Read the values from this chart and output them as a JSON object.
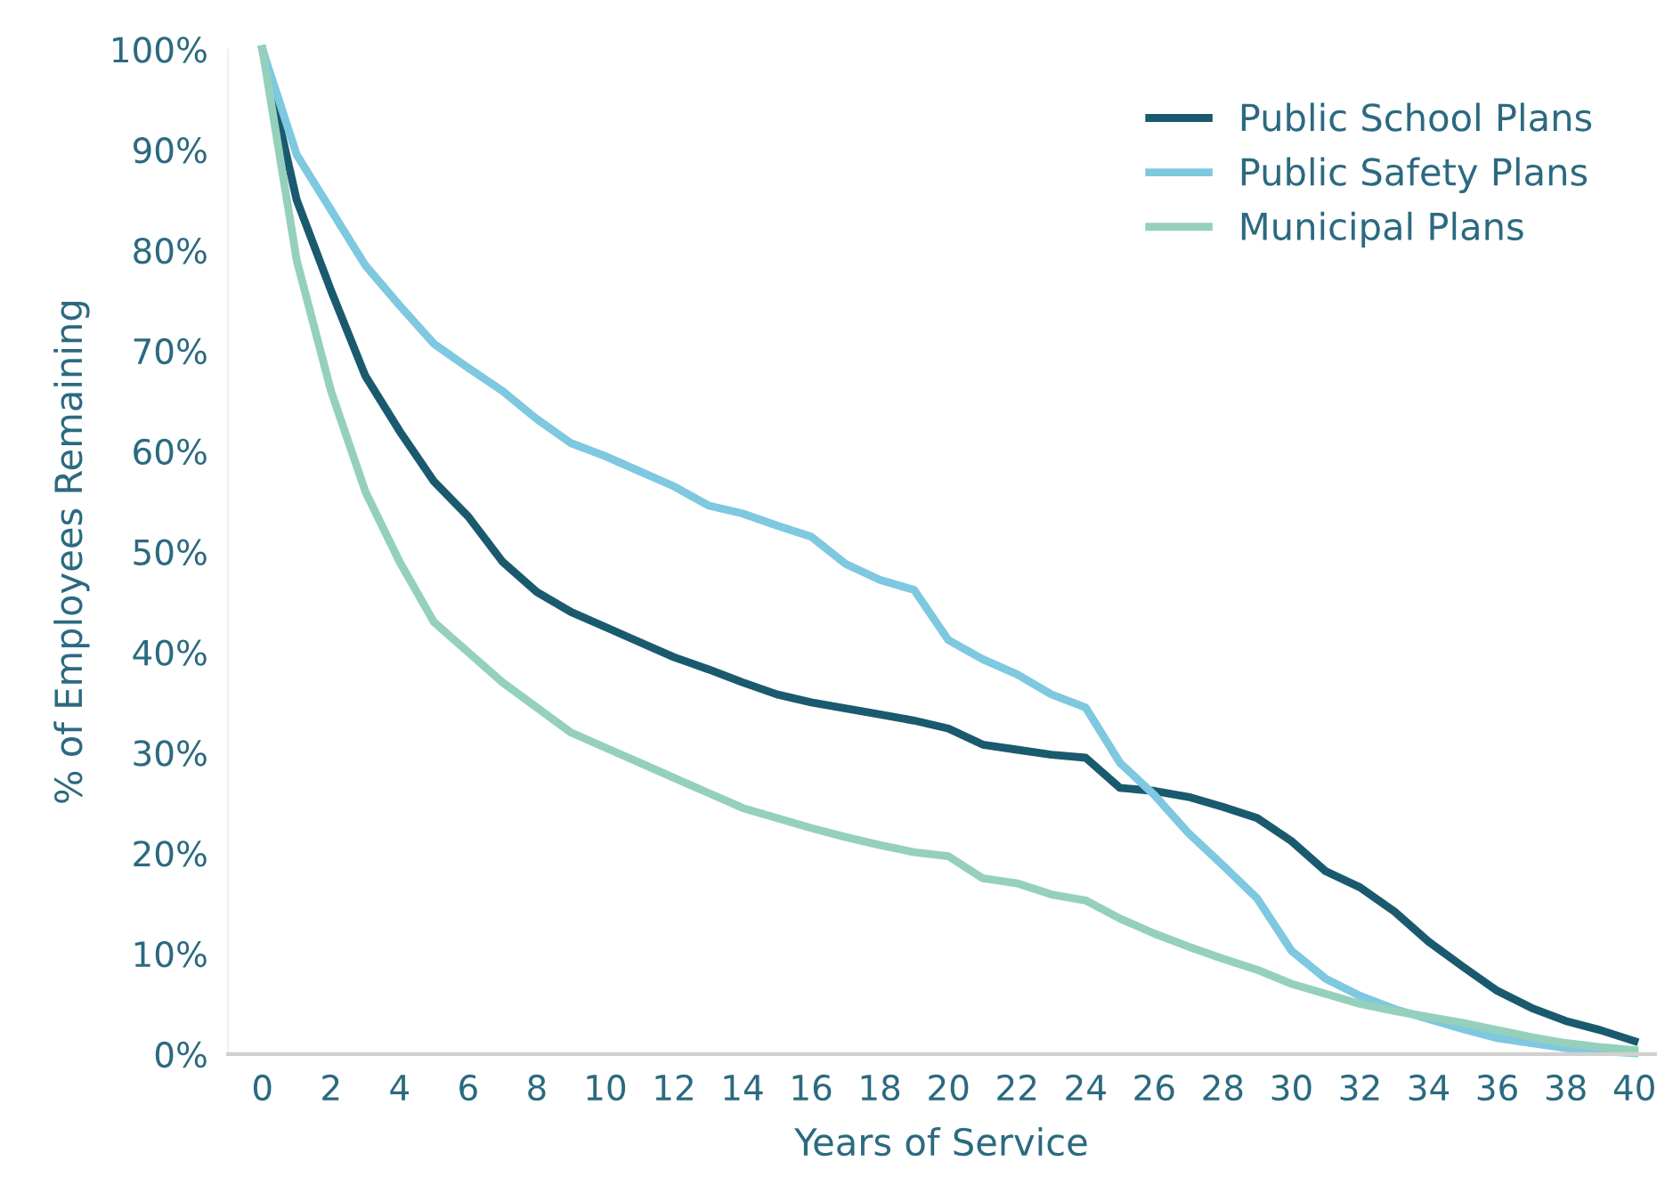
{
  "chart_data": {
    "type": "line",
    "xlabel": "Years of Service",
    "ylabel": "% of Employees Remaining",
    "x": [
      0,
      1,
      2,
      3,
      4,
      5,
      6,
      7,
      8,
      9,
      10,
      11,
      12,
      13,
      14,
      15,
      16,
      17,
      18,
      19,
      20,
      21,
      22,
      23,
      24,
      25,
      26,
      27,
      28,
      29,
      30,
      31,
      32,
      33,
      34,
      35,
      36,
      37,
      38,
      39,
      40
    ],
    "series": [
      {
        "name": "Public School Plans",
        "color": "#1a5a6e",
        "values": [
          100,
          85,
          76,
          67.5,
          62,
          57,
          53.5,
          49,
          46,
          44,
          42.5,
          41,
          39.5,
          38.3,
          37,
          35.8,
          35,
          34.4,
          33.8,
          33.2,
          32.4,
          30.8,
          30.3,
          29.8,
          29.5,
          26.5,
          26.2,
          25.6,
          24.6,
          23.5,
          21.2,
          18.2,
          16.6,
          14.2,
          11.2,
          8.7,
          6.3,
          4.6,
          3.3,
          2.4,
          1.3
        ]
      },
      {
        "name": "Public Safety Plans",
        "color": "#7ec8e0",
        "values": [
          100,
          89.5,
          84,
          78.5,
          74.5,
          70.7,
          68.3,
          66,
          63.2,
          60.8,
          59.5,
          58,
          56.5,
          54.6,
          53.8,
          52.6,
          51.5,
          48.8,
          47.2,
          46.2,
          41.2,
          39.3,
          37.8,
          35.8,
          34.5,
          29,
          25.8,
          22,
          18.8,
          15.5,
          10.3,
          7.5,
          5.8,
          4.5,
          3.5,
          2.5,
          1.6,
          1.1,
          0.6,
          0.3,
          0.1
        ]
      },
      {
        "name": "Municipal Plans",
        "color": "#95d0bc",
        "values": [
          100,
          79,
          66,
          56,
          49,
          43,
          40,
          37,
          34.5,
          32,
          30.5,
          29,
          27.5,
          26,
          24.5,
          23.5,
          22.5,
          21.6,
          20.8,
          20.1,
          19.7,
          17.5,
          17,
          15.9,
          15.3,
          13.5,
          12,
          10.7,
          9.5,
          8.4,
          7,
          6,
          5,
          4.3,
          3.7,
          3.1,
          2.4,
          1.7,
          1.1,
          0.7,
          0.4
        ]
      }
    ],
    "xlim": [
      -1,
      40.6
    ],
    "xticks": [
      0,
      2,
      4,
      6,
      8,
      10,
      12,
      14,
      16,
      18,
      20,
      22,
      24,
      26,
      28,
      30,
      32,
      34,
      36,
      38,
      40
    ],
    "ylim": [
      0,
      100
    ],
    "yticks": [
      {
        "value": 0,
        "label": "0%"
      },
      {
        "value": 10,
        "label": "10%"
      },
      {
        "value": 20,
        "label": "20%"
      },
      {
        "value": 30,
        "label": "30%"
      },
      {
        "value": 40,
        "label": "40%"
      },
      {
        "value": 50,
        "label": "50%"
      },
      {
        "value": 60,
        "label": "60%"
      },
      {
        "value": 70,
        "label": "70%"
      },
      {
        "value": 80,
        "label": "80%"
      },
      {
        "value": 90,
        "label": "90%"
      },
      {
        "value": 100,
        "label": "100%"
      }
    ],
    "grid": false,
    "legend": "top right",
    "marker": "none",
    "line_style": "solid"
  }
}
